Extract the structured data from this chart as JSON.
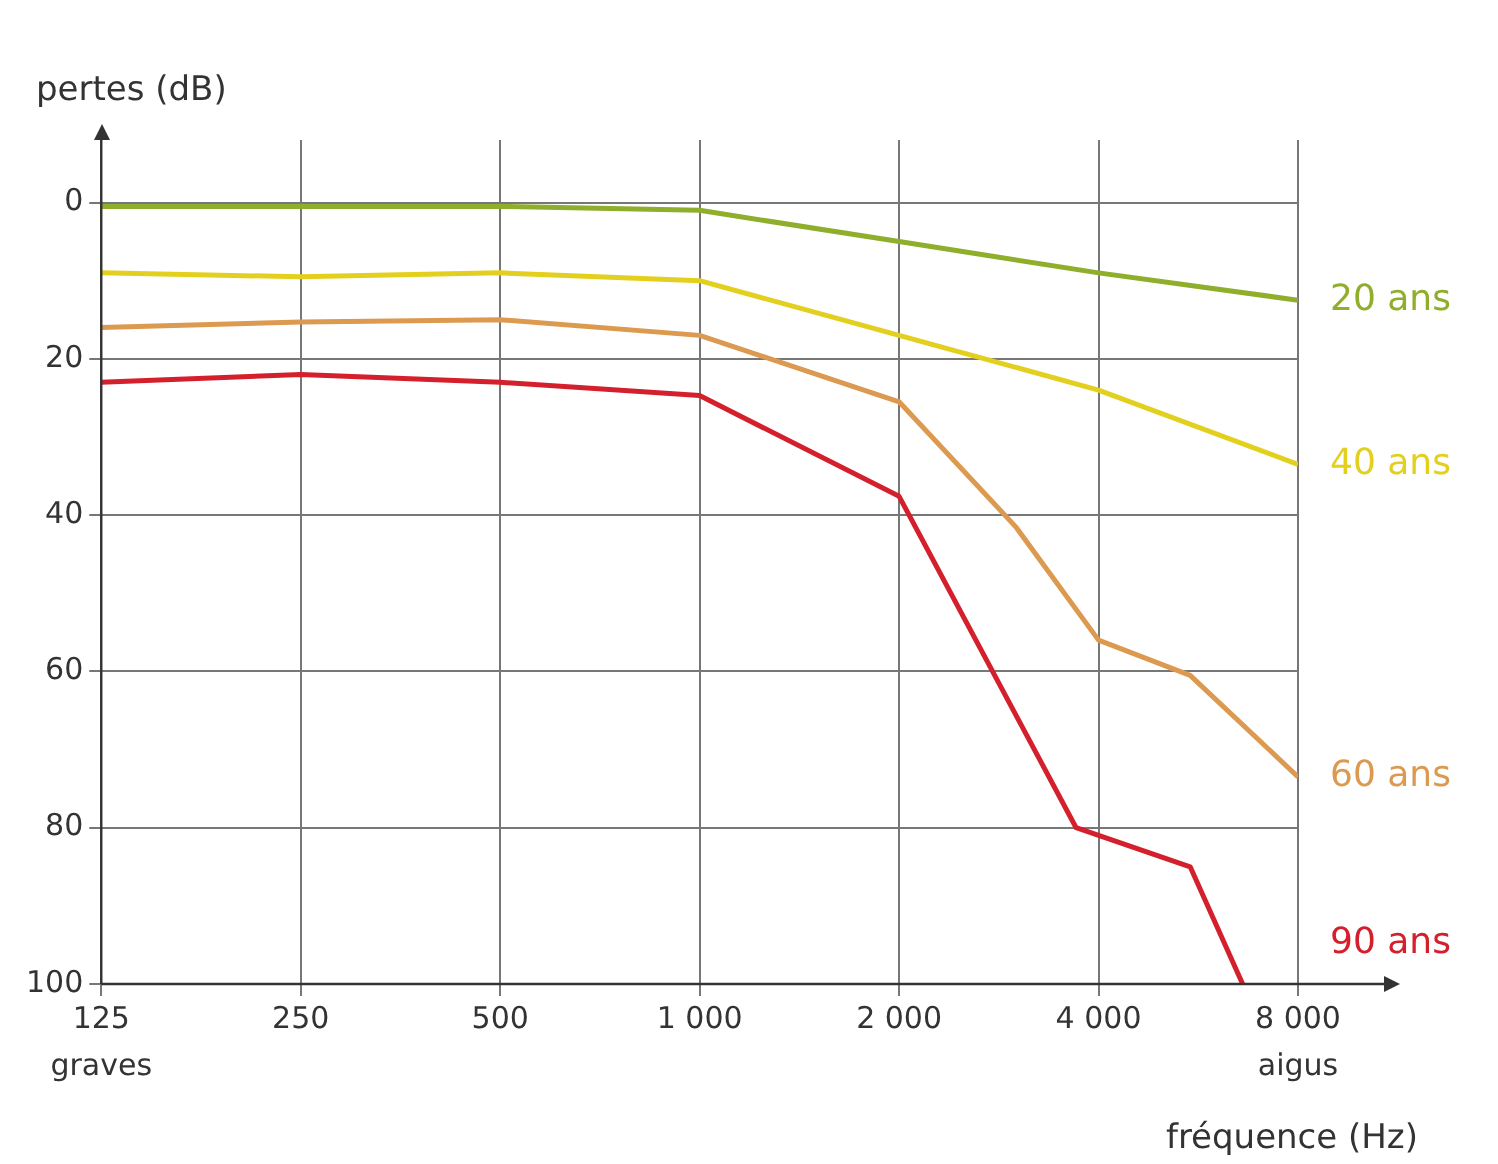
{
  "chart_data": {
    "type": "line",
    "ylabel": "pertes (dB)",
    "xlabel": "fréquence (Hz)",
    "log": "x",
    "xlim": [
      125,
      8000
    ],
    "xticks": [
      125,
      250,
      500,
      {
        "value": 1000,
        "label": "1 000"
      },
      {
        "value": 2000,
        "label": "2 000"
      },
      {
        "value": 4000,
        "label": "4 000"
      },
      {
        "value": 8000,
        "label": "8 000"
      }
    ],
    "ylim": [
      100,
      -8
    ],
    "yticks": [
      0,
      20,
      40,
      60,
      80,
      100
    ],
    "grid": true,
    "legend": false,
    "marker": "none",
    "line_style": "solid",
    "annotations": [
      "graves",
      "aigus"
    ],
    "series": [
      {
        "name": "20 ans",
        "color": "#8fae2c",
        "x": [
          125,
          250,
          500,
          1000,
          2000,
          4000,
          8000
        ],
        "values": [
          0.5,
          0.5,
          0.5,
          1,
          5,
          9,
          12.5
        ]
      },
      {
        "name": "40 ans",
        "color": "#e3cf1e",
        "x": [
          125,
          250,
          500,
          1000,
          2000,
          4000,
          8000
        ],
        "values": [
          9,
          9.5,
          9,
          10,
          17,
          24,
          33.5
        ]
      },
      {
        "name": "60 ans",
        "color": "#dc9a50",
        "x": [
          125,
          250,
          500,
          1000,
          2000,
          3000,
          4000,
          5500,
          8000
        ],
        "values": [
          16,
          15.3,
          15,
          17,
          25.5,
          41.5,
          56,
          60.5,
          73.5
        ]
      },
      {
        "name": "90 ans",
        "color": "#d4202c",
        "x": [
          125,
          250,
          500,
          1000,
          2000,
          3700,
          5500,
          6600
        ],
        "values": [
          23,
          22,
          23,
          24.7,
          37.6,
          80,
          85,
          100
        ]
      }
    ]
  }
}
